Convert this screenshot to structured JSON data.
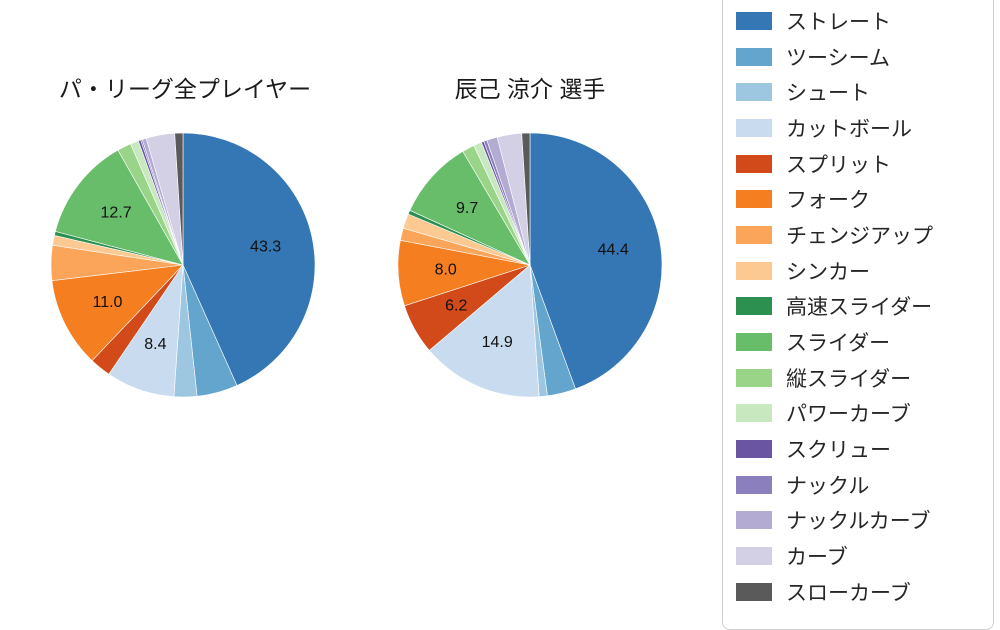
{
  "titles": {
    "left": "パ・リーグ全プレイヤー",
    "right": "辰己 涼介 選手"
  },
  "legend": {
    "items": [
      {
        "label": "ストレート",
        "color": "#3577b4"
      },
      {
        "label": "ツーシーム",
        "color": "#64a5cd"
      },
      {
        "label": "シュート",
        "color": "#9dc6e0"
      },
      {
        "label": "カットボール",
        "color": "#c9dcef"
      },
      {
        "label": "スプリット",
        "color": "#d2491a"
      },
      {
        "label": "フォーク",
        "color": "#f57e20"
      },
      {
        "label": "チェンジアップ",
        "color": "#faa55a"
      },
      {
        "label": "シンカー",
        "color": "#fcc992"
      },
      {
        "label": "高速スライダー",
        "color": "#2c9050"
      },
      {
        "label": "スライダー",
        "color": "#68bd6a"
      },
      {
        "label": "縦スライダー",
        "color": "#9ad489"
      },
      {
        "label": "パワーカーブ",
        "color": "#c8e8bf"
      },
      {
        "label": "スクリュー",
        "color": "#6a55a3"
      },
      {
        "label": "ナックル",
        "color": "#8c7fbe"
      },
      {
        "label": "ナックルカーブ",
        "color": "#b4abd3"
      },
      {
        "label": "カーブ",
        "color": "#d3d0e6"
      },
      {
        "label": "スローカーブ",
        "color": "#5a5a5a"
      }
    ]
  },
  "chart_data": [
    {
      "type": "pie",
      "title": "パ・リーグ全プレイヤー",
      "unit": "percent",
      "start_angle": "top",
      "direction": "clockwise",
      "label_min_value": 6,
      "labeled_values_shown": [
        43.3,
        8.4,
        11.0,
        12.7
      ],
      "categories": [
        "ストレート",
        "ツーシーム",
        "シュート",
        "カットボール",
        "スプリット",
        "フォーク",
        "チェンジアップ",
        "シンカー",
        "高速スライダー",
        "スライダー",
        "縦スライダー",
        "パワーカーブ",
        "スクリュー",
        "ナックル",
        "ナックルカーブ",
        "カーブ",
        "スローカーブ"
      ],
      "values": [
        43.3,
        5.0,
        2.8,
        8.4,
        2.6,
        11.0,
        4.3,
        1.2,
        0.5,
        12.7,
        1.7,
        1.0,
        0.3,
        0.2,
        0.5,
        3.5,
        1.0
      ],
      "colors": [
        "#3577b4",
        "#64a5cd",
        "#9dc6e0",
        "#c9dcef",
        "#d2491a",
        "#f57e20",
        "#faa55a",
        "#fcc992",
        "#2c9050",
        "#68bd6a",
        "#9ad489",
        "#c8e8bf",
        "#6a55a3",
        "#8c7fbe",
        "#b4abd3",
        "#d3d0e6",
        "#5a5a5a"
      ]
    },
    {
      "type": "pie",
      "title": "辰己 涼介 選手",
      "unit": "percent",
      "start_angle": "top",
      "direction": "clockwise",
      "label_min_value": 6,
      "labeled_values_shown": [
        44.4,
        14.9,
        6.2,
        8.0,
        9.7
      ],
      "categories": [
        "ストレート",
        "ツーシーム",
        "シュート",
        "カットボール",
        "スプリット",
        "フォーク",
        "チェンジアップ",
        "シンカー",
        "高速スライダー",
        "スライダー",
        "縦スライダー",
        "パワーカーブ",
        "スクリュー",
        "ナックル",
        "ナックルカーブ",
        "カーブ",
        "スローカーブ"
      ],
      "values": [
        44.4,
        3.5,
        1.0,
        14.9,
        6.2,
        8.0,
        1.5,
        1.8,
        0.5,
        9.7,
        1.5,
        1.0,
        0.3,
        0.4,
        1.3,
        3.0,
        1.0
      ],
      "colors": [
        "#3577b4",
        "#64a5cd",
        "#9dc6e0",
        "#c9dcef",
        "#d2491a",
        "#f57e20",
        "#faa55a",
        "#fcc992",
        "#2c9050",
        "#68bd6a",
        "#9ad489",
        "#c8e8bf",
        "#6a55a3",
        "#8c7fbe",
        "#b4abd3",
        "#d3d0e6",
        "#5a5a5a"
      ]
    }
  ]
}
